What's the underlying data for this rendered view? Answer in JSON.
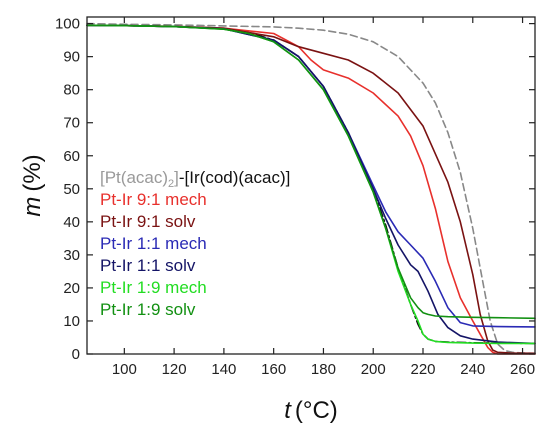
{
  "chart_data": {
    "type": "line",
    "title": "",
    "xlabel": {
      "var": "t",
      "unit": "(°C)"
    },
    "ylabel": {
      "var": "m",
      "unit": "(%)"
    },
    "xlim": [
      85,
      265
    ],
    "ylim": [
      0,
      102
    ],
    "xticks": [
      100,
      120,
      140,
      160,
      180,
      200,
      220,
      240,
      260
    ],
    "yticks": [
      0,
      10,
      20,
      30,
      40,
      50,
      60,
      70,
      80,
      90,
      100
    ],
    "grid": false,
    "legend_position": "center-left",
    "legend_header": {
      "part1": "[Pt(acac)",
      "sub": "2",
      "part2": "]",
      "part3": "-[Ir(cod)(acac)]",
      "color1": "#9a9a9a",
      "color2": "#111111"
    },
    "series": [
      {
        "name": "[Pt(acac)2]",
        "color": "#888888",
        "dash": "dashed",
        "x": [
          85,
          100,
          120,
          140,
          160,
          170,
          180,
          190,
          200,
          210,
          220,
          225,
          230,
          235,
          240,
          244,
          247,
          250,
          253,
          256,
          260,
          265
        ],
        "y": [
          100,
          99.8,
          99.6,
          99.3,
          99,
          98.6,
          98,
          96.8,
          94.5,
          90,
          82,
          76,
          67,
          55,
          38,
          22,
          10,
          3,
          1,
          0.5,
          0.3,
          0.2
        ]
      },
      {
        "name": "[Ir(cod)(acac)]",
        "color": "#111111",
        "dash": "dashdot",
        "x": [
          85,
          100,
          120,
          140,
          150,
          160,
          170,
          180,
          190,
          200,
          205,
          210,
          215,
          218,
          220,
          222,
          225,
          230,
          240,
          250,
          265
        ],
        "y": [
          99.5,
          99.4,
          99.1,
          98.4,
          97.3,
          95,
          90,
          81,
          67,
          50,
          39,
          26,
          15,
          9,
          6,
          4.5,
          3.8,
          3.6,
          3.4,
          3.3,
          3.2
        ]
      },
      {
        "name": "Pt-Ir 9:1 mech",
        "color": "#e8302c",
        "dash": "solid",
        "x": [
          85,
          100,
          120,
          140,
          160,
          170,
          175,
          180,
          190,
          200,
          210,
          215,
          220,
          225,
          230,
          235,
          240,
          243,
          246,
          248,
          250,
          255,
          265
        ],
        "y": [
          99.5,
          99.4,
          99.1,
          98.6,
          97,
          93,
          89,
          86,
          83.5,
          79,
          72,
          66,
          57,
          44,
          28,
          17,
          10,
          6,
          2,
          0.5,
          0,
          0,
          0
        ]
      },
      {
        "name": "Pt-Ir 9:1 solv",
        "color": "#7a1212",
        "dash": "solid",
        "x": [
          85,
          100,
          120,
          140,
          160,
          170,
          180,
          190,
          200,
          210,
          220,
          230,
          235,
          240,
          243,
          246,
          248,
          250,
          255,
          265
        ],
        "y": [
          99.5,
          99.4,
          99.2,
          98.6,
          96,
          93,
          91,
          89,
          85,
          79,
          69,
          52,
          40,
          24,
          12,
          4,
          1.2,
          0.5,
          0.3,
          0.2
        ]
      },
      {
        "name": "Pt-Ir 1:1 mech",
        "color": "#2a2ab5",
        "dash": "solid",
        "x": [
          85,
          100,
          120,
          140,
          160,
          170,
          180,
          190,
          200,
          205,
          210,
          215,
          220,
          225,
          230,
          235,
          240,
          250,
          265
        ],
        "y": [
          99.5,
          99.4,
          99.1,
          98.4,
          95,
          90,
          81,
          67,
          51,
          43,
          37,
          33,
          29,
          22,
          14,
          9.5,
          8.5,
          8.3,
          8.2
        ]
      },
      {
        "name": "Pt-Ir 1:1 solv",
        "color": "#141466",
        "dash": "solid",
        "x": [
          85,
          100,
          120,
          140,
          160,
          170,
          180,
          190,
          200,
          205,
          210,
          215,
          218,
          222,
          226,
          230,
          235,
          240,
          250,
          265
        ],
        "y": [
          99.5,
          99.4,
          99.1,
          98.4,
          95,
          90,
          81,
          67,
          50,
          41,
          33,
          27,
          25,
          19,
          12,
          8,
          5.5,
          4.5,
          3.6,
          3.2
        ]
      },
      {
        "name": "Pt-Ir 1:9 mech",
        "color": "#22dd22",
        "dash": "solid",
        "x": [
          85,
          100,
          120,
          140,
          150,
          160,
          170,
          180,
          190,
          200,
          205,
          210,
          215,
          218,
          220,
          222,
          225,
          230,
          240,
          250,
          265
        ],
        "y": [
          99.5,
          99.4,
          99.1,
          98.3,
          97,
          94.5,
          89,
          80,
          66,
          49,
          38,
          25,
          15,
          10,
          6,
          4.5,
          3.8,
          3.5,
          3.3,
          3.2,
          3.2
        ]
      },
      {
        "name": "Pt-Ir 1:9 solv",
        "color": "#129012",
        "dash": "solid",
        "x": [
          85,
          100,
          120,
          140,
          150,
          160,
          170,
          180,
          190,
          200,
          205,
          210,
          215,
          218,
          220,
          222,
          225,
          230,
          240,
          250,
          265
        ],
        "y": [
          99.5,
          99.4,
          99.1,
          98.3,
          97,
          94.5,
          89,
          80,
          66,
          49,
          38,
          26,
          17,
          14,
          12.5,
          12,
          11.5,
          11.3,
          11.1,
          11,
          10.8
        ]
      }
    ]
  }
}
